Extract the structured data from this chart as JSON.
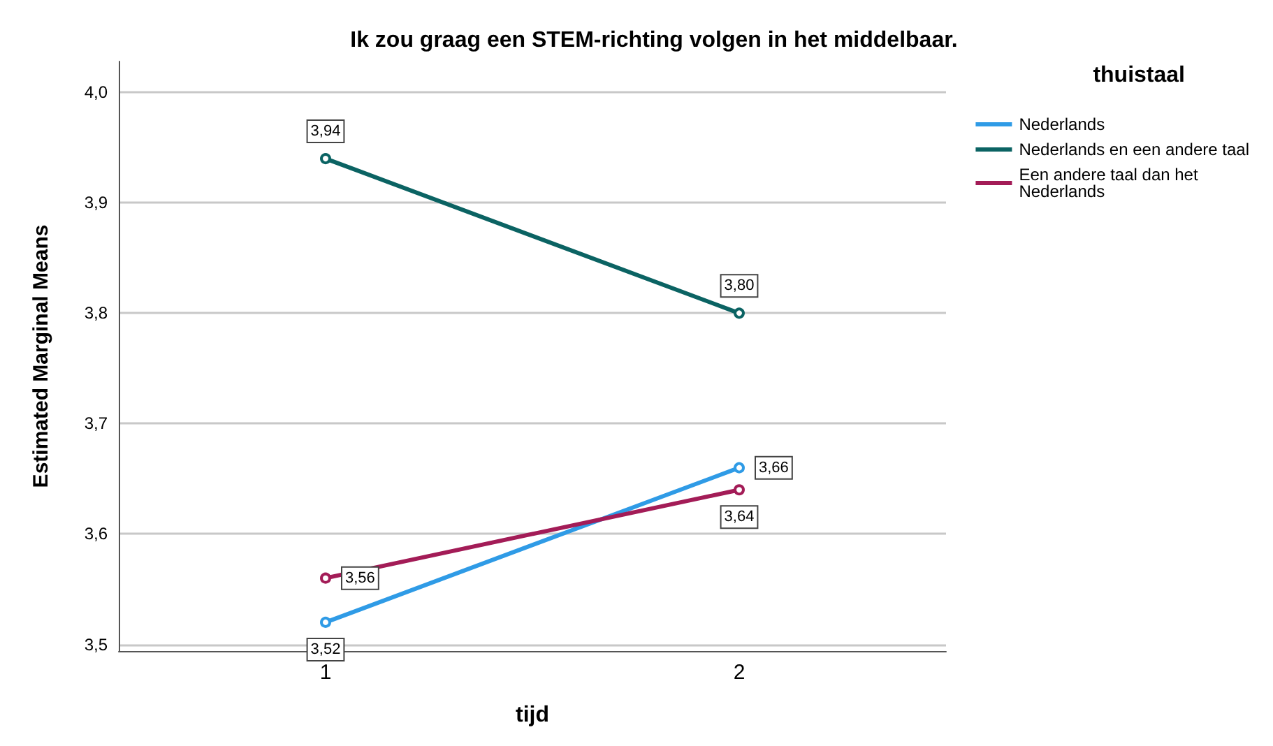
{
  "chart_data": {
    "type": "line",
    "title": "Ik zou graag een STEM-richting volgen in het middelbaar.",
    "xlabel": "tijd",
    "ylabel": "Estimated Marginal Means",
    "legend_title": "thuistaal",
    "legend": "right",
    "grid": "y",
    "marker": "circle",
    "line_style": "solid",
    "categories": [
      "1",
      "2"
    ],
    "ylim": [
      3.494,
      4.028
    ],
    "yticks": [
      {
        "value": 3.5,
        "label": "3,5"
      },
      {
        "value": 3.6,
        "label": "3,6"
      },
      {
        "value": 3.7,
        "label": "3,7"
      },
      {
        "value": 3.8,
        "label": "3,8"
      },
      {
        "value": 3.9,
        "label": "3,9"
      },
      {
        "value": 4.0,
        "label": "4,0"
      }
    ],
    "series": [
      {
        "name": "Nederlands",
        "color": "#2f9be6",
        "values": [
          3.52,
          3.66
        ],
        "value_labels": [
          "3,52",
          "3,66"
        ]
      },
      {
        "name": "Nederlands en een andere taal",
        "color": "#0b6363",
        "values": [
          3.94,
          3.8
        ],
        "value_labels": [
          "3,94",
          "3,80"
        ]
      },
      {
        "name": "Een andere taal dan het Nederlands",
        "color": "#a31c57",
        "values": [
          3.56,
          3.64
        ],
        "value_labels": [
          "3,56",
          "3,64"
        ]
      }
    ]
  }
}
